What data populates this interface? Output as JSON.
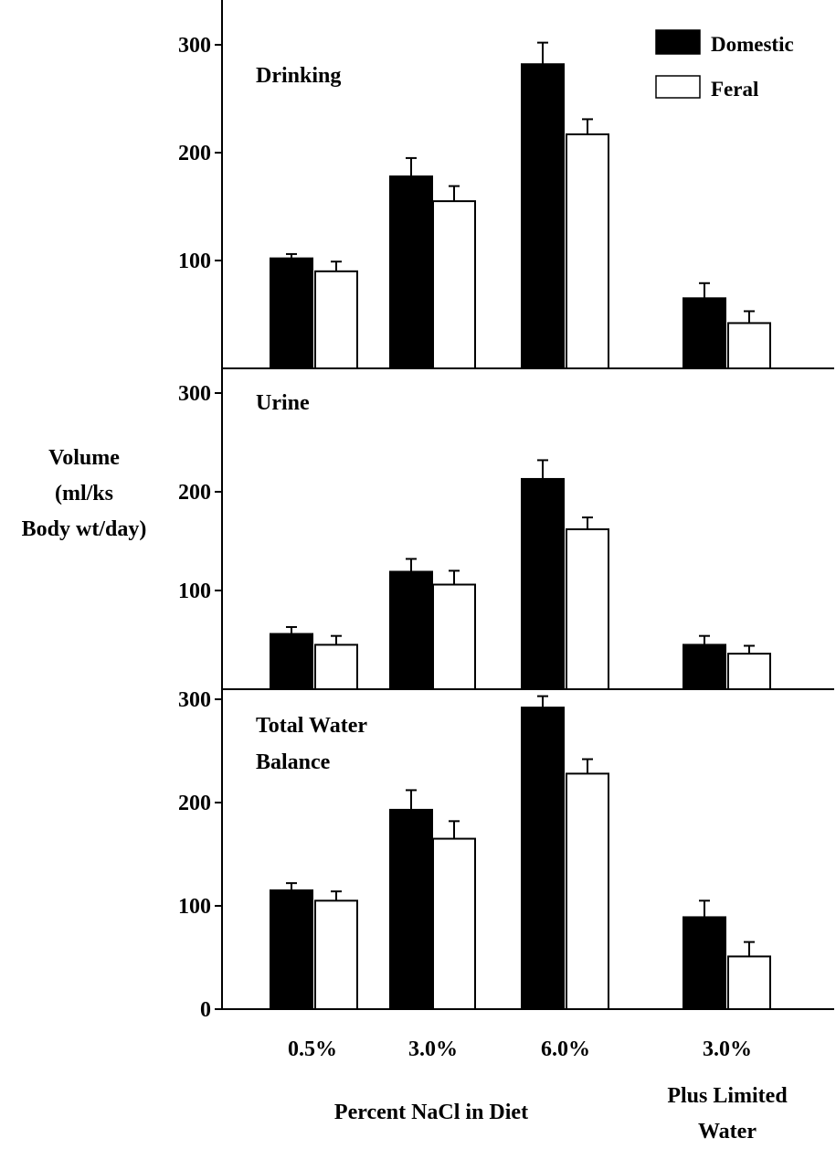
{
  "figure": {
    "ylabel_lines": [
      "Volume",
      "(ml/ks",
      "Body wt/day)"
    ],
    "xlabel": "Percent NaCl in Diet",
    "group_labels": [
      "0.5%",
      "3.0%",
      "6.0%",
      "3.0%"
    ],
    "group_sublabel_lines": [
      "Plus Limited",
      "Water"
    ],
    "legend": [
      {
        "name": "Domestic",
        "color": "#000000"
      },
      {
        "name": "Feral",
        "color": "#ffffff"
      }
    ]
  },
  "chart_data": [
    {
      "type": "bar",
      "panel_label_lines": [
        "Drinking"
      ],
      "categories": [
        "0.5%",
        "3.0%",
        "6.0%",
        "3.0% Plus Limited Water"
      ],
      "series": [
        {
          "name": "Domestic",
          "values": [
            102,
            178,
            282,
            65
          ],
          "errors": [
            4,
            17,
            20,
            14
          ]
        },
        {
          "name": "Feral",
          "values": [
            90,
            155,
            217,
            42
          ],
          "errors": [
            9,
            14,
            14,
            11
          ]
        }
      ],
      "yticks": [
        100,
        200,
        300
      ],
      "ylim": [
        0,
        345
      ]
    },
    {
      "type": "bar",
      "panel_label_lines": [
        "Urine"
      ],
      "categories": [
        "0.5%",
        "3.0%",
        "6.0%",
        "3.0% Plus Limited Water"
      ],
      "series": [
        {
          "name": "Domestic",
          "values": [
            56,
            119,
            213,
            45
          ],
          "errors": [
            7,
            13,
            19,
            9
          ]
        },
        {
          "name": "Feral",
          "values": [
            45,
            106,
            162,
            36
          ],
          "errors": [
            9,
            14,
            12,
            8
          ]
        }
      ],
      "yticks": [
        100,
        200,
        300
      ],
      "ylim": [
        0,
        310
      ]
    },
    {
      "type": "bar",
      "panel_label_lines": [
        "Total Water",
        "Balance"
      ],
      "categories": [
        "0.5%",
        "3.0%",
        "6.0%",
        "3.0% Plus Limited Water"
      ],
      "series": [
        {
          "name": "Domestic",
          "values": [
            115,
            193,
            292,
            89
          ],
          "errors": [
            7,
            19,
            11,
            16
          ]
        },
        {
          "name": "Feral",
          "values": [
            105,
            165,
            228,
            51
          ],
          "errors": [
            9,
            17,
            14,
            14
          ]
        }
      ],
      "yticks": [
        0,
        100,
        200,
        300
      ],
      "ylim": [
        0,
        312
      ]
    }
  ]
}
